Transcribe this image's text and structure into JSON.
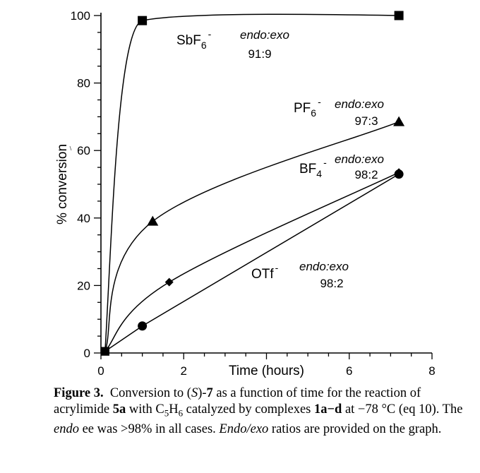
{
  "chart_data": {
    "type": "line",
    "xlabel": "Time (hours)",
    "ylabel": "% conversion",
    "xlim": [
      0,
      8
    ],
    "ylim": [
      0,
      100
    ],
    "x_ticks": [
      0,
      2,
      6,
      8
    ],
    "y_ticks": [
      0,
      20,
      40,
      60,
      80,
      100
    ],
    "grid": false,
    "series": [
      {
        "name": "SbF6-",
        "marker": "square",
        "label_main": "SbF",
        "label_sub": "6",
        "label_sup": "-",
        "ratio_label": "endo:exo",
        "ratio": "91:9",
        "points": [
          [
            0.1,
            0.5
          ],
          [
            1.0,
            98.5
          ],
          [
            7.2,
            100.0
          ]
        ]
      },
      {
        "name": "PF6-",
        "marker": "triangle",
        "label_main": "PF",
        "label_sub": "6",
        "label_sup": "-",
        "ratio_label": "endo:exo",
        "ratio": "97:3",
        "points": [
          [
            0.1,
            0.5
          ],
          [
            1.25,
            39.0
          ],
          [
            7.2,
            68.5
          ]
        ]
      },
      {
        "name": "BF4-",
        "marker": "diamond",
        "label_main": "BF",
        "label_sub": "4",
        "label_sup": "-",
        "ratio_label": "endo:exo",
        "ratio": "98:2",
        "points": [
          [
            0.1,
            0.5
          ],
          [
            1.65,
            21.0
          ],
          [
            7.2,
            53.5
          ]
        ]
      },
      {
        "name": "OTf-",
        "marker": "circle",
        "label_main": "OTf",
        "label_sub": "",
        "label_sup": "-",
        "ratio_label": "endo:exo",
        "ratio": "98:2",
        "points": [
          [
            0.1,
            0.5
          ],
          [
            1.0,
            8.0
          ],
          [
            7.2,
            53.0
          ]
        ]
      }
    ]
  },
  "caption": {
    "figure_label": "Figure 3.",
    "line1_a": "Conversion to (",
    "line1_s": "S",
    "line1_b": ")-",
    "line1_num": "7",
    "line1_c": " as a function of time for the reaction of",
    "line2_a": "acrylimide ",
    "line2_5a": "5a",
    "line2_b": " with C",
    "line2_sub1": "5",
    "line2_c": "H",
    "line2_sub2": "6",
    "line2_d": " catalyzed by complexes ",
    "line2_1ad": "1a−d",
    "line2_e": " at −78 °C (eq",
    "line3_a": "10). The ",
    "line3_endo": "endo",
    "line3_b": " ee was >98% in all cases. ",
    "line3_endoexo": "Endo/exo",
    "line3_c": " ratios are provided",
    "line4": "on the graph."
  }
}
